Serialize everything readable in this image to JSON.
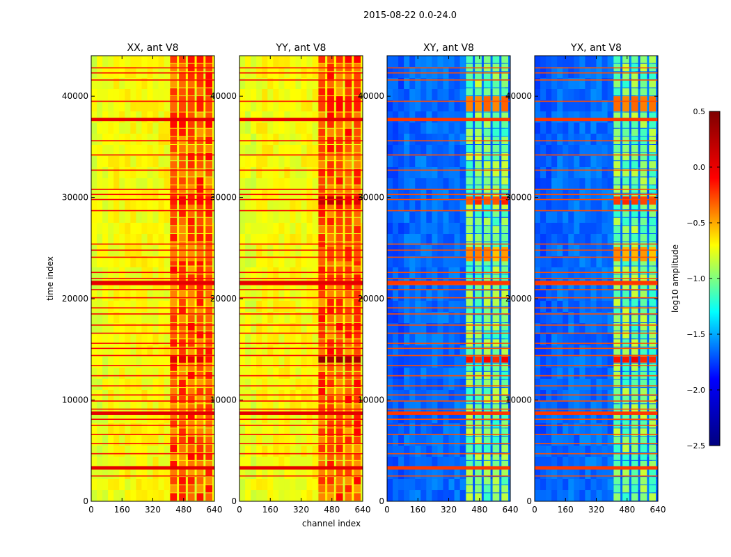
{
  "figure": {
    "suptitle": "2015-08-22 0.0-24.0",
    "xlabel": "channel index",
    "ylabel": "time index",
    "colorbar_label": "log10 amplitude"
  },
  "chart_data": {
    "type": "heatmap",
    "colormap": "jet",
    "colormap_stops": [
      "#00007f",
      "#0000ff",
      "#00ffff",
      "#ffff00",
      "#ff0000",
      "#7f0000"
    ],
    "xlim": [
      0,
      640
    ],
    "ylim": [
      0,
      44000
    ],
    "xticks": [
      0,
      160,
      320,
      480,
      640
    ],
    "yticks": [
      0,
      10000,
      20000,
      30000,
      40000
    ],
    "xtick_labels": [
      "0",
      "160",
      "320",
      "480",
      "640"
    ],
    "ytick_labels": [
      "0",
      "10000",
      "20000",
      "30000",
      "40000"
    ],
    "panels": [
      {
        "title": "XX, ant V8",
        "background": 0.62,
        "band_level": 0.78,
        "hot_level": 0.9,
        "line_level": 0.88
      },
      {
        "title": "YY, ant V8",
        "background": 0.62,
        "band_level": 0.78,
        "hot_level": 0.95,
        "line_level": 0.88
      },
      {
        "title": "XY, ant V8",
        "background": 0.23,
        "band_level": 0.48,
        "hot_level": 0.85,
        "line_level": 0.8
      },
      {
        "title": "YX, ant V8",
        "background": 0.23,
        "band_level": 0.48,
        "hot_level": 0.85,
        "line_level": 0.8
      }
    ],
    "band_channel_range": [
      410,
      640
    ],
    "horizontal_lines": [
      2500,
      3300,
      4700,
      5700,
      6600,
      7500,
      8100,
      8700,
      9100,
      9900,
      10500,
      11400,
      12400,
      13400,
      14400,
      15100,
      15600,
      16600,
      17400,
      18500,
      19100,
      20100,
      20900,
      21400,
      21700,
      22000,
      22600,
      24100,
      24800,
      25400,
      28700,
      29800,
      30300,
      30800,
      32700,
      34200,
      35600,
      37700,
      39500,
      41600,
      42300,
      42800
    ],
    "thick_lines": [
      3300,
      8700,
      21600,
      37700
    ],
    "hot_bands": [
      {
        "y": [
          13700,
          14300
        ],
        "level": 1.0
      },
      {
        "y": [
          29300,
          30100
        ],
        "level": 0.95
      },
      {
        "y": [
          38500,
          40000
        ],
        "level": 0.9
      },
      {
        "y": [
          23700,
          25100
        ],
        "level": 0.85
      }
    ],
    "colorbar": {
      "range": [
        -2.5,
        0.5
      ],
      "ticks": [
        0.5,
        0.0,
        -0.5,
        -1.0,
        -1.5,
        -2.0,
        -2.5
      ],
      "tick_labels": [
        "0.5",
        "0.0",
        "−0.5",
        "−1.0",
        "−1.5",
        "−2.0",
        "−2.5"
      ]
    }
  }
}
